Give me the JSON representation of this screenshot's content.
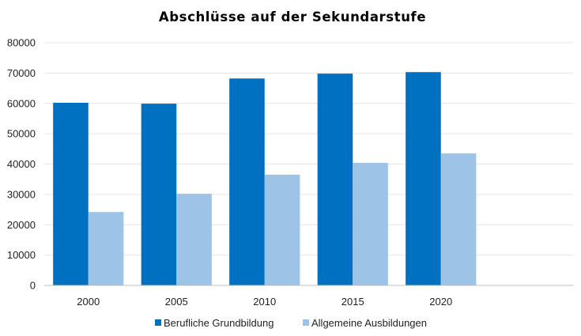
{
  "chart_data": {
    "type": "bar",
    "title": "Abschlüsse auf der Sekundarstufe",
    "categories": [
      "2000",
      "2005",
      "2010",
      "2015",
      "2020",
      ""
    ],
    "series": [
      {
        "name": "Berufliche Grundbildung",
        "color": "#0070C0",
        "values": [
          60200,
          59900,
          68200,
          69800,
          70300,
          null
        ]
      },
      {
        "name": "Allgemeine Ausbildungen",
        "color": "#9DC3E6",
        "values": [
          24200,
          30200,
          36500,
          40400,
          43500,
          null
        ]
      }
    ],
    "yticks": [
      "0",
      "10000",
      "20000",
      "30000",
      "40000",
      "50000",
      "60000",
      "70000",
      "80000"
    ],
    "ylim": [
      0,
      80000
    ],
    "grid": true,
    "legend_position": "bottom"
  }
}
